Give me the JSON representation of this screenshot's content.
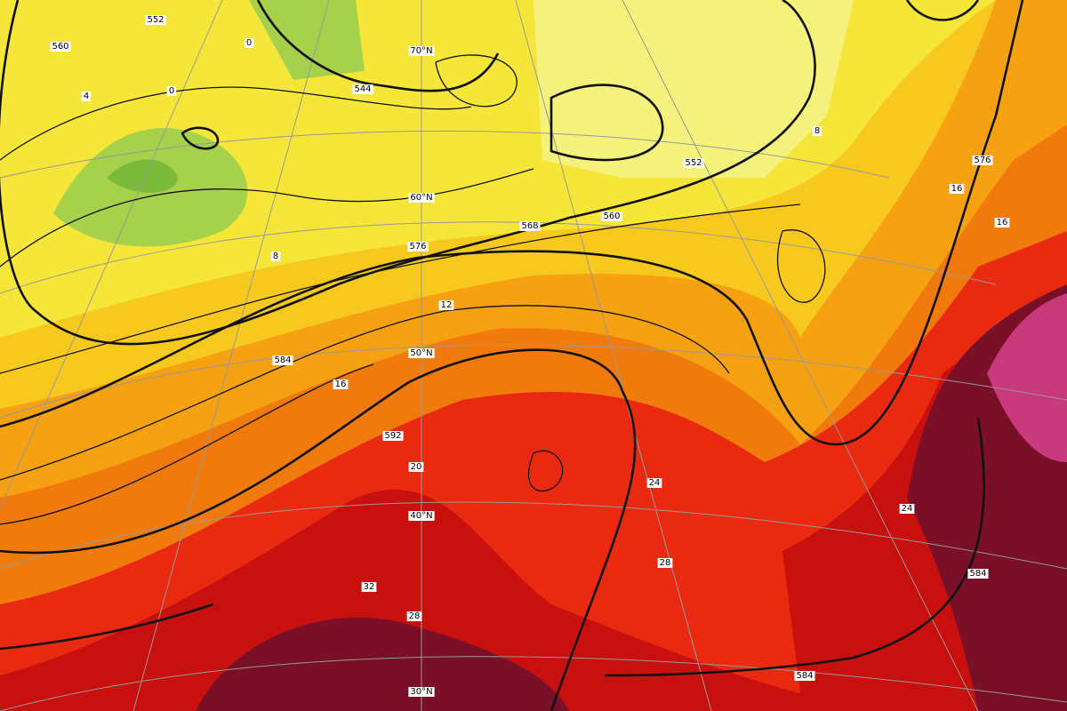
{
  "contour_labels": [
    "552",
    "560",
    "544",
    "552",
    "560",
    "568",
    "576",
    "576",
    "584",
    "592",
    "584",
    "584",
    "8",
    "12",
    "16",
    "16",
    "16",
    "20",
    "24",
    "24",
    "28",
    "28",
    "32",
    "0",
    "4",
    "0",
    "8"
  ],
  "latitude_labels": [
    "70°N",
    "60°N",
    "50°N",
    "40°N",
    "30°N"
  ]
}
